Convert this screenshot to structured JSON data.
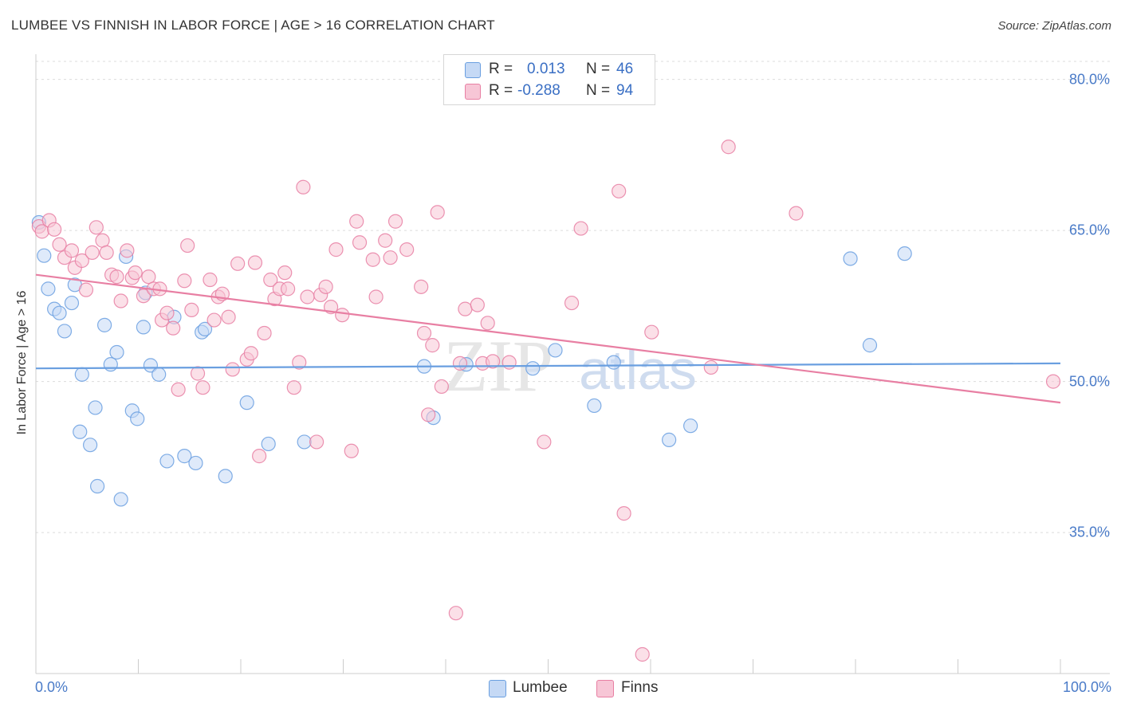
{
  "chart_data": {
    "type": "scatter",
    "title": "LUMBEE VS FINNISH IN LABOR FORCE | AGE > 16 CORRELATION CHART",
    "source": "Source: ZipAtlas.com",
    "ylabel": "In Labor Force | Age > 16",
    "xlabel": "",
    "xlim": [
      0,
      100
    ],
    "ylim": [
      21.0,
      82.5
    ],
    "x_tick_labels": {
      "min": "0.0%",
      "max": "100.0%"
    },
    "y_ticks": [
      {
        "value": 35,
        "label": "35.0%"
      },
      {
        "value": 50,
        "label": "50.0%"
      },
      {
        "value": 65,
        "label": "65.0%"
      },
      {
        "value": 80,
        "label": "80.0%"
      }
    ],
    "legend": {
      "rows": [
        {
          "r_label": "R =",
          "r_value": "0.013",
          "n_label": "N =",
          "n_value": "46"
        },
        {
          "r_label": "R =",
          "r_value": "-0.288",
          "n_label": "N =",
          "n_value": "94"
        }
      ]
    },
    "watermark": {
      "zip": "ZIP",
      "atlas": "atlas"
    },
    "series": [
      {
        "name": "Lumbee",
        "color": "#6a9fe0",
        "fill": "#c5d9f5",
        "trend": {
          "x": [
            0,
            100
          ],
          "y": [
            51.3,
            51.8
          ]
        },
        "points": [
          [
            0.3,
            65.8
          ],
          [
            0.8,
            62.5
          ],
          [
            1.2,
            59.2
          ],
          [
            1.8,
            57.2
          ],
          [
            2.3,
            56.8
          ],
          [
            2.8,
            55.0
          ],
          [
            3.5,
            57.8
          ],
          [
            3.8,
            59.6
          ],
          [
            4.5,
            50.7
          ],
          [
            4.3,
            45.0
          ],
          [
            5.3,
            43.7
          ],
          [
            5.8,
            47.4
          ],
          [
            6.0,
            39.6
          ],
          [
            6.7,
            55.6
          ],
          [
            7.3,
            51.7
          ],
          [
            7.9,
            52.9
          ],
          [
            8.3,
            38.3
          ],
          [
            8.8,
            62.4
          ],
          [
            9.4,
            47.1
          ],
          [
            9.9,
            46.3
          ],
          [
            10.5,
            55.4
          ],
          [
            10.7,
            58.8
          ],
          [
            11.2,
            51.6
          ],
          [
            12.0,
            50.7
          ],
          [
            12.8,
            42.1
          ],
          [
            13.5,
            56.4
          ],
          [
            14.5,
            42.6
          ],
          [
            15.6,
            41.9
          ],
          [
            16.2,
            54.9
          ],
          [
            16.5,
            55.2
          ],
          [
            18.5,
            40.6
          ],
          [
            20.6,
            47.9
          ],
          [
            22.7,
            43.8
          ],
          [
            26.2,
            44.0
          ],
          [
            37.9,
            51.5
          ],
          [
            38.8,
            46.4
          ],
          [
            42.0,
            51.7
          ],
          [
            48.5,
            51.3
          ],
          [
            50.7,
            53.1
          ],
          [
            54.5,
            47.6
          ],
          [
            56.4,
            51.9
          ],
          [
            61.8,
            44.2
          ],
          [
            63.9,
            45.6
          ],
          [
            79.5,
            62.2
          ],
          [
            81.4,
            53.6
          ],
          [
            84.8,
            62.7
          ]
        ]
      },
      {
        "name": "Finns",
        "color": "#e87fa3",
        "fill": "#f7c6d6",
        "trend": {
          "x": [
            0,
            100
          ],
          "y": [
            60.6,
            47.9
          ]
        },
        "points": [
          [
            0.3,
            65.4
          ],
          [
            0.6,
            64.9
          ],
          [
            1.3,
            66.0
          ],
          [
            1.8,
            65.1
          ],
          [
            2.3,
            63.6
          ],
          [
            2.8,
            62.3
          ],
          [
            3.5,
            63.0
          ],
          [
            3.8,
            61.3
          ],
          [
            4.5,
            62.0
          ],
          [
            4.9,
            59.1
          ],
          [
            5.5,
            62.8
          ],
          [
            5.9,
            65.3
          ],
          [
            6.5,
            64.0
          ],
          [
            6.9,
            62.8
          ],
          [
            7.4,
            60.6
          ],
          [
            7.9,
            60.4
          ],
          [
            8.3,
            58.0
          ],
          [
            8.9,
            63.0
          ],
          [
            9.4,
            60.3
          ],
          [
            9.7,
            60.8
          ],
          [
            10.5,
            58.5
          ],
          [
            11.0,
            60.4
          ],
          [
            11.5,
            59.2
          ],
          [
            12.1,
            59.2
          ],
          [
            12.3,
            56.1
          ],
          [
            12.8,
            56.8
          ],
          [
            13.4,
            55.3
          ],
          [
            13.9,
            49.2
          ],
          [
            14.5,
            60.0
          ],
          [
            14.8,
            63.5
          ],
          [
            15.2,
            57.1
          ],
          [
            15.8,
            50.8
          ],
          [
            16.3,
            49.4
          ],
          [
            17.0,
            60.1
          ],
          [
            17.4,
            56.1
          ],
          [
            17.8,
            58.4
          ],
          [
            18.2,
            58.7
          ],
          [
            18.8,
            56.4
          ],
          [
            19.2,
            51.2
          ],
          [
            19.7,
            61.7
          ],
          [
            20.6,
            52.2
          ],
          [
            21.0,
            52.8
          ],
          [
            21.4,
            61.8
          ],
          [
            21.8,
            42.6
          ],
          [
            22.3,
            54.8
          ],
          [
            22.9,
            60.1
          ],
          [
            23.3,
            58.2
          ],
          [
            23.8,
            59.2
          ],
          [
            24.3,
            60.8
          ],
          [
            24.6,
            59.2
          ],
          [
            25.2,
            49.4
          ],
          [
            25.7,
            51.9
          ],
          [
            26.1,
            69.3
          ],
          [
            26.5,
            58.4
          ],
          [
            27.4,
            44.0
          ],
          [
            27.8,
            58.6
          ],
          [
            28.3,
            59.4
          ],
          [
            28.8,
            57.4
          ],
          [
            29.3,
            63.1
          ],
          [
            29.9,
            56.6
          ],
          [
            30.8,
            43.1
          ],
          [
            31.3,
            65.9
          ],
          [
            31.6,
            63.8
          ],
          [
            32.9,
            62.1
          ],
          [
            33.2,
            58.4
          ],
          [
            34.1,
            64.0
          ],
          [
            34.6,
            62.3
          ],
          [
            35.1,
            65.9
          ],
          [
            36.2,
            63.1
          ],
          [
            37.6,
            59.4
          ],
          [
            37.9,
            54.8
          ],
          [
            38.3,
            46.7
          ],
          [
            38.7,
            53.6
          ],
          [
            39.2,
            66.8
          ],
          [
            39.6,
            49.5
          ],
          [
            41.0,
            27.0
          ],
          [
            41.4,
            51.8
          ],
          [
            41.9,
            57.2
          ],
          [
            43.1,
            57.6
          ],
          [
            43.6,
            51.8
          ],
          [
            44.1,
            55.8
          ],
          [
            44.6,
            52.0
          ],
          [
            46.2,
            51.9
          ],
          [
            49.6,
            44.0
          ],
          [
            52.3,
            57.8
          ],
          [
            53.2,
            65.2
          ],
          [
            56.9,
            68.9
          ],
          [
            57.4,
            36.9
          ],
          [
            59.2,
            22.9
          ],
          [
            60.1,
            54.9
          ],
          [
            65.9,
            51.4
          ],
          [
            67.6,
            73.3
          ],
          [
            74.2,
            66.7
          ],
          [
            99.3,
            50.0
          ]
        ]
      }
    ]
  }
}
